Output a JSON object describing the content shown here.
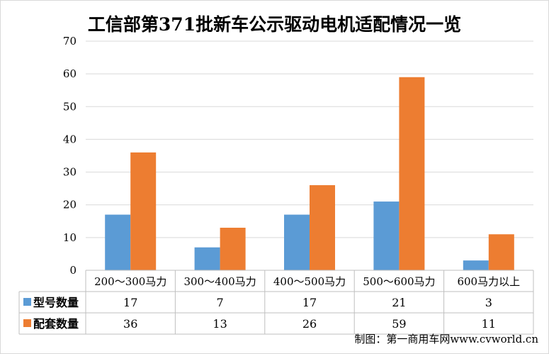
{
  "chart_data": {
    "type": "bar",
    "title": "工信部第371批新车公示驱动电机适配情况一览",
    "categories": [
      "200～300马力",
      "300～400马力",
      "400～500马力",
      "500～600马力",
      "600马力以上"
    ],
    "series": [
      {
        "name": "型号数量",
        "values": [
          17,
          7,
          17,
          21,
          3
        ],
        "color": "#5b9bd5"
      },
      {
        "name": "配套数量",
        "values": [
          36,
          13,
          26,
          59,
          11
        ],
        "color": "#ed7d31"
      }
    ],
    "ylim": [
      0,
      70
    ],
    "yticks": [
      0,
      10,
      20,
      30,
      40,
      50,
      60,
      70
    ],
    "grid": true,
    "legend": "data-table-left"
  },
  "source_note": "制图：第一商用车网www.cvworld.cn"
}
